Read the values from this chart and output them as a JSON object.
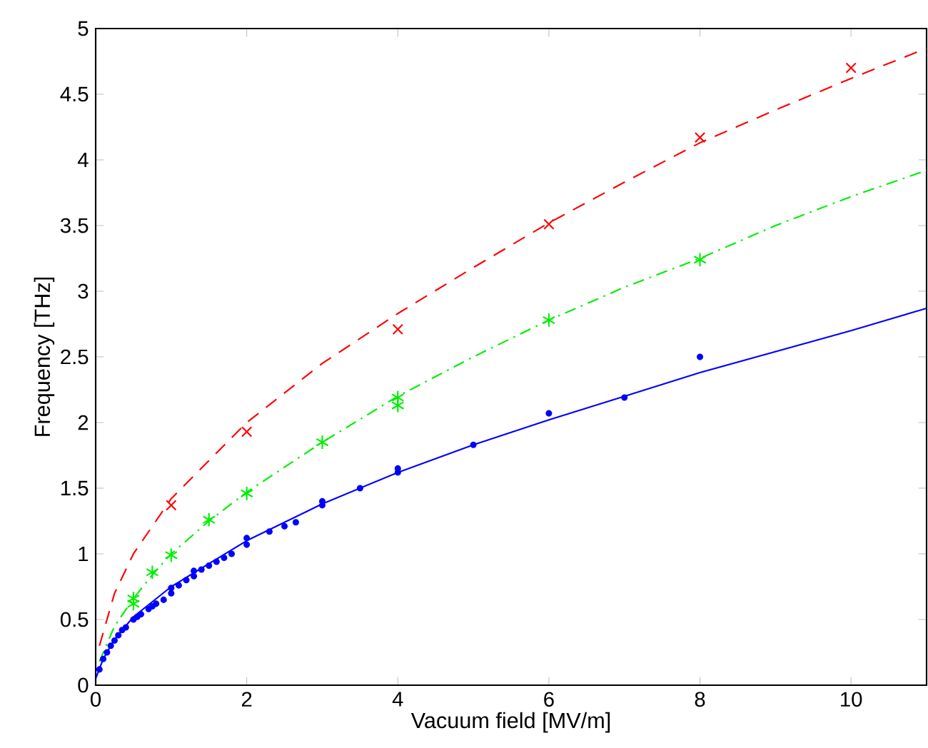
{
  "chart_data": {
    "type": "scatter",
    "xlabel": "Vacuum field [MV/m]",
    "ylabel": "Frequency [THz]",
    "xlim": [
      0,
      11
    ],
    "ylim": [
      0,
      5
    ],
    "xticks": [
      0,
      2,
      4,
      6,
      8,
      10
    ],
    "yticks": [
      0,
      0.5,
      1,
      1.5,
      2,
      2.5,
      3,
      3.5,
      4,
      4.5,
      5
    ],
    "grid": false,
    "series": [
      {
        "type": "line",
        "color": "#ff0000",
        "line_style": "dashed",
        "marker": "none",
        "x": [
          0.05,
          0.25,
          0.5,
          1,
          2,
          3,
          4,
          5,
          6,
          7,
          8,
          9,
          10,
          11
        ],
        "values": [
          0.3,
          0.7,
          1.0,
          1.42,
          2.0,
          2.45,
          2.83,
          3.18,
          3.52,
          3.83,
          4.13,
          4.38,
          4.62,
          4.85
        ]
      },
      {
        "type": "line",
        "color": "#00ee00",
        "line_style": "dashdot",
        "marker": "none",
        "x": [
          0.05,
          0.25,
          0.5,
          0.75,
          1,
          1.5,
          2,
          3,
          4,
          5,
          6,
          7,
          8,
          9,
          10,
          11
        ],
        "values": [
          0.18,
          0.45,
          0.66,
          0.84,
          1.0,
          1.25,
          1.47,
          1.85,
          2.2,
          2.5,
          2.78,
          3.03,
          3.25,
          3.5,
          3.72,
          3.92
        ]
      },
      {
        "type": "line",
        "color": "#0000ff",
        "line_style": "solid",
        "marker": "none",
        "x": [
          0,
          0.1,
          0.25,
          0.5,
          1,
          2,
          3,
          4,
          5,
          6,
          7,
          8,
          10,
          11
        ],
        "values": [
          0.05,
          0.2,
          0.35,
          0.52,
          0.75,
          1.1,
          1.38,
          1.62,
          1.83,
          2.02,
          2.2,
          2.38,
          2.7,
          2.87
        ]
      },
      {
        "color": "#ff0000",
        "marker": "cross",
        "x": [
          1,
          2,
          4,
          6,
          8,
          10
        ],
        "values": [
          1.37,
          1.93,
          2.71,
          3.51,
          4.17,
          4.7
        ]
      },
      {
        "color": "#00ee00",
        "x": [
          0.5,
          0.5,
          0.75,
          1,
          1.5,
          2,
          3,
          4,
          4,
          6,
          8
        ],
        "values": [
          0.62,
          0.66,
          0.86,
          0.99,
          1.26,
          1.46,
          1.85,
          2.13,
          2.19,
          2.78,
          3.24
        ]
      },
      {
        "color": "#0000ff",
        "marker": "circle",
        "x": [
          0.05,
          0.1,
          0.15,
          0.2,
          0.25,
          0.3,
          0.35,
          0.4,
          0.5,
          0.55,
          0.6,
          0.7,
          0.75,
          0.8,
          0.9,
          1,
          1,
          1.1,
          1.2,
          1.3,
          1.3,
          1.4,
          1.5,
          1.6,
          1.7,
          1.8,
          2,
          2,
          2.3,
          2.5,
          2.65,
          3,
          3,
          3.5,
          4,
          4,
          5,
          6,
          7,
          8
        ],
        "values": [
          0.12,
          0.2,
          0.25,
          0.3,
          0.34,
          0.38,
          0.42,
          0.44,
          0.5,
          0.52,
          0.54,
          0.58,
          0.6,
          0.62,
          0.65,
          0.7,
          0.74,
          0.76,
          0.8,
          0.83,
          0.87,
          0.88,
          0.91,
          0.94,
          0.97,
          1.0,
          1.07,
          1.12,
          1.17,
          1.21,
          1.24,
          1.37,
          1.4,
          1.5,
          1.62,
          1.65,
          1.83,
          2.07,
          2.19,
          2.5
        ]
      }
    ]
  }
}
